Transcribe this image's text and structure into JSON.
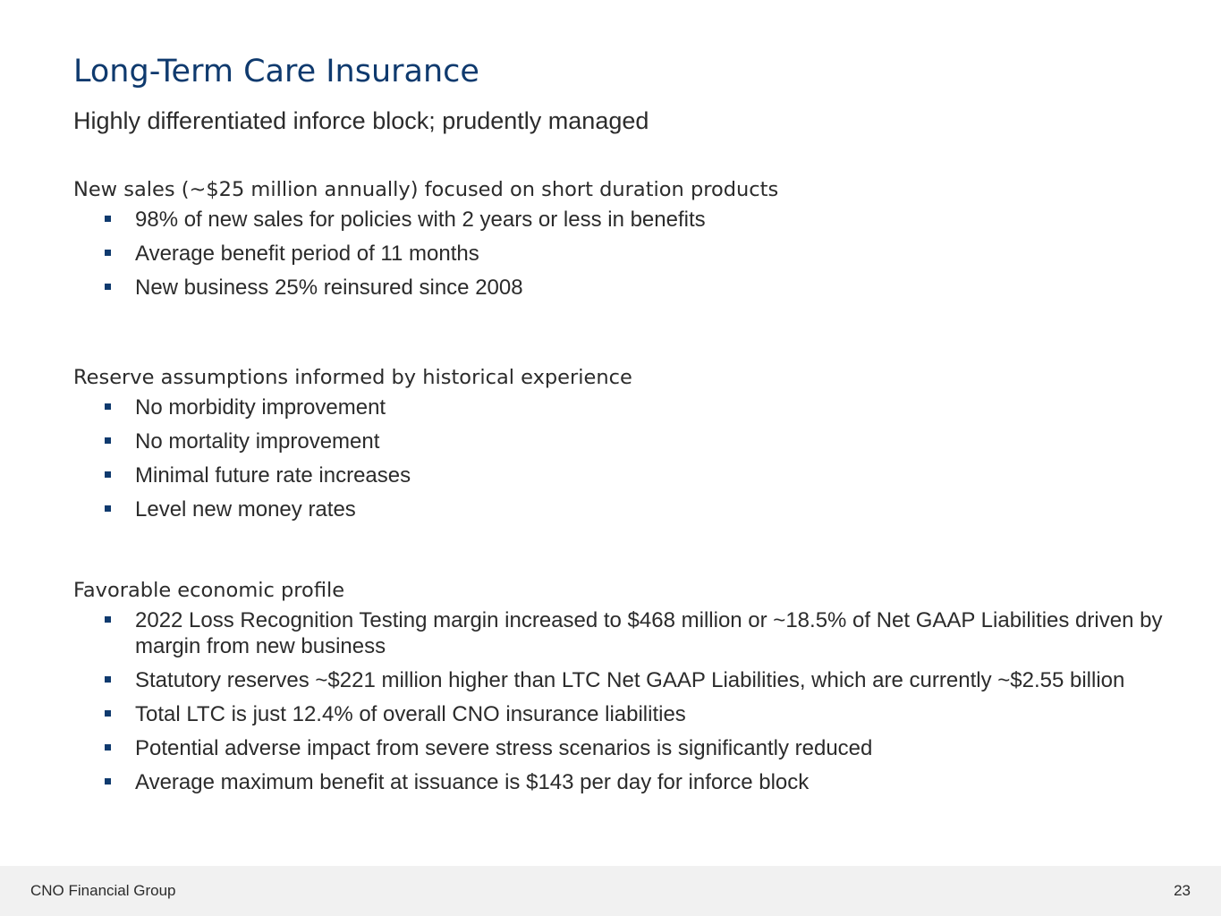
{
  "title": "Long-Term Care Insurance",
  "subtitle": "Highly differentiated inforce block; prudently managed",
  "sections": [
    {
      "heading": "New sales (~$25 million annually) focused on short duration products",
      "bullets": [
        "98% of new sales for policies with 2 years or less in benefits",
        "Average benefit period of 11 months",
        "New business 25% reinsured since 2008"
      ]
    },
    {
      "heading": "Reserve assumptions informed by historical experience",
      "bullets": [
        "No morbidity improvement",
        "No mortality improvement",
        "Minimal future rate increases",
        "Level new money rates"
      ]
    },
    {
      "heading": "Favorable economic profile",
      "bullets": [
        "2022 Loss Recognition Testing margin increased to $468 million or ~18.5% of Net GAAP Liabilities driven by margin from new business",
        "Statutory reserves ~$221 million higher than LTC Net GAAP Liabilities, which are currently ~$2.55 billion",
        "Total LTC is just 12.4% of overall CNO insurance liabilities",
        "Potential adverse impact from severe stress scenarios is significantly reduced",
        "Average maximum benefit at issuance is $143 per day for inforce block"
      ]
    }
  ],
  "footer": {
    "company": "CNO Financial Group",
    "page_number": "23"
  },
  "colors": {
    "title": "#0f3a6e",
    "bullet_marker": "#0f3a6e",
    "body_text": "#2b2b2b",
    "footer_background": "#f1f1f1"
  }
}
